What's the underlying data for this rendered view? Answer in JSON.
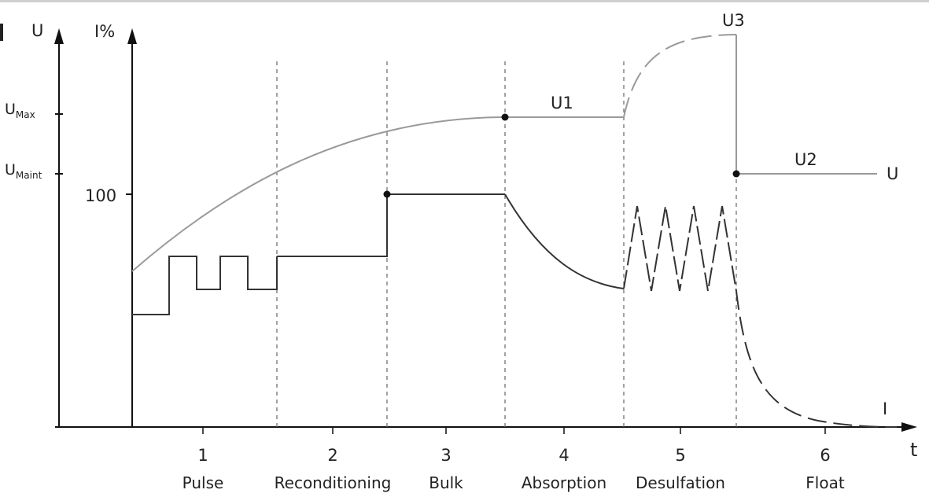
{
  "axes": {
    "u_axis_label": "U",
    "i_axis_label": "I%",
    "time_label": "t",
    "u_max": {
      "main": "U",
      "sub": "Max"
    },
    "u_maint": {
      "main": "U",
      "sub": "Maint"
    },
    "i_100": "100"
  },
  "curve_labels": {
    "u1": "U1",
    "u2": "U2",
    "u3": "U3",
    "u_end": "U",
    "i_end": "I"
  },
  "stages": [
    {
      "number": "1",
      "name": "Pulse"
    },
    {
      "number": "2",
      "name": "Reconditioning"
    },
    {
      "number": "3",
      "name": "Bulk"
    },
    {
      "number": "4",
      "name": "Absorption"
    },
    {
      "number": "5",
      "name": "Desulfation"
    },
    {
      "number": "6",
      "name": "Float"
    }
  ],
  "colors": {
    "voltage_curve": "#9a9a9a",
    "current_curve": "#333333",
    "axis": "#111111",
    "divider": "#666666"
  }
}
